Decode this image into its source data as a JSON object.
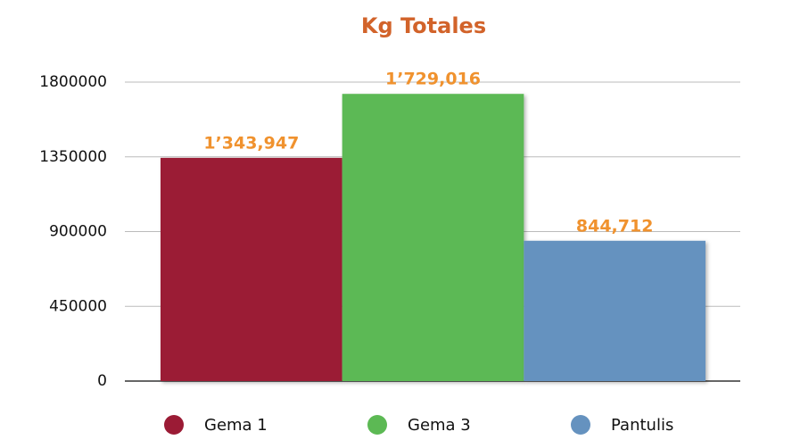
{
  "chart_data": {
    "type": "bar",
    "title": "Kg Totales",
    "series": [
      {
        "name": "Gema 1",
        "color": "#9b1b35",
        "values": [
          1343947
        ],
        "value_labels": [
          "1’343,947"
        ]
      },
      {
        "name": "Gema 3",
        "color": "#5cb954",
        "values": [
          1729016
        ],
        "value_labels": [
          "1’729,016"
        ]
      },
      {
        "name": "Pantulis",
        "color": "#6592bf",
        "values": [
          844712
        ],
        "value_labels": [
          "844,712"
        ]
      }
    ],
    "ylim": [
      0,
      1800000
    ],
    "yticks": [
      0,
      450000,
      900000,
      1350000,
      1800000
    ],
    "grid": true,
    "legend": "bottom"
  }
}
